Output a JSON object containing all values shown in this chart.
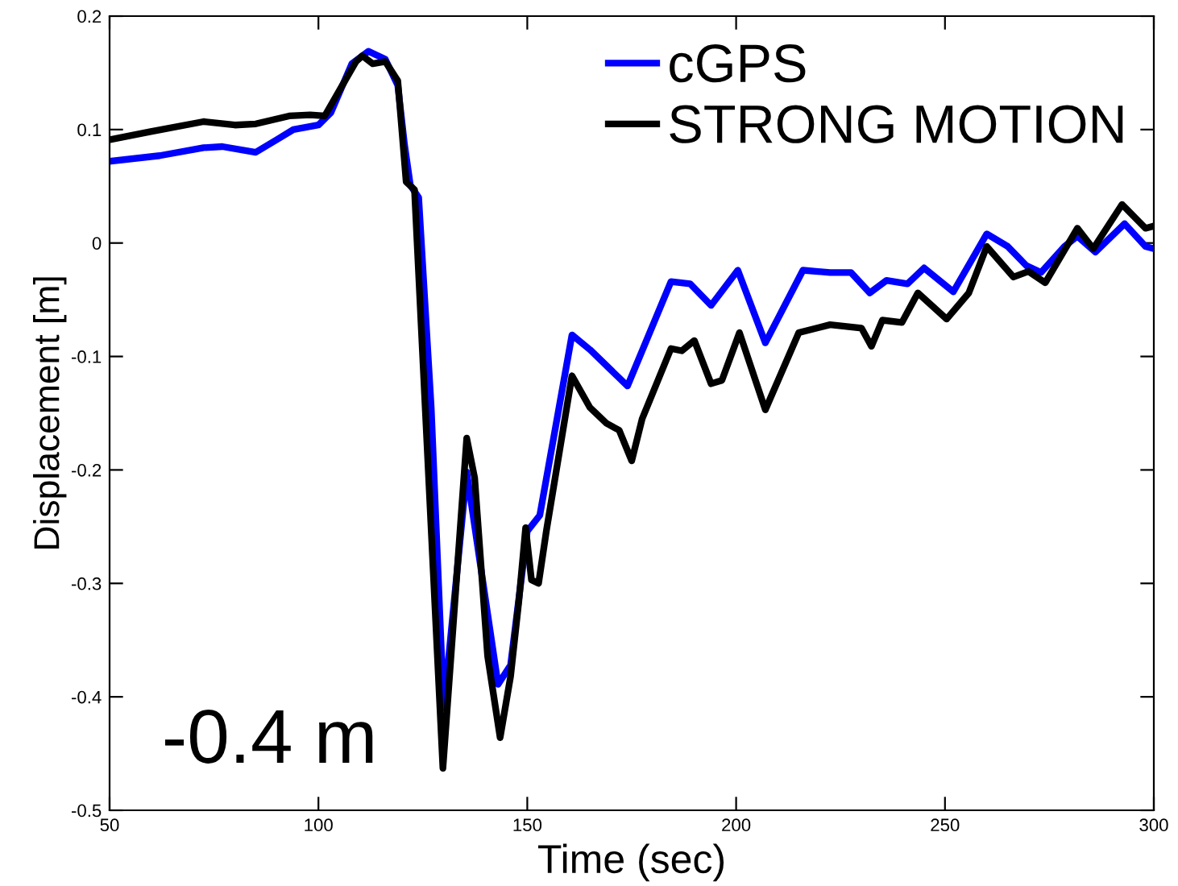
{
  "chart_data": {
    "type": "line",
    "xlabel": "Time (sec)",
    "ylabel": "Displacement [m]",
    "annotations": [
      "-0.4 m"
    ],
    "xlim": [
      50,
      300
    ],
    "ylim": [
      -0.5,
      0.2
    ],
    "xticks": [
      50,
      100,
      150,
      200,
      250,
      300
    ],
    "yticks": [
      -0.5,
      -0.4,
      -0.3,
      -0.2,
      -0.1,
      0,
      0.1,
      0.2
    ],
    "grid": false,
    "legend": "top right",
    "marker": "none",
    "line_style": "solid",
    "series": [
      {
        "name": "cGPS",
        "color": "#0000ff",
        "x": [
          50,
          62,
          72.5,
          77,
          85,
          90,
          94,
          100,
          103,
          108,
          112,
          116,
          119,
          120.6,
          122,
          124,
          127,
          130,
          135.5,
          143,
          146,
          150,
          153,
          160.7,
          165,
          174,
          184.4,
          189,
          194,
          200.4,
          207,
          216,
          222.5,
          227.5,
          232,
          236,
          241,
          245,
          252,
          260,
          265,
          269.5,
          273,
          278.6,
          281.7,
          286,
          293,
          298,
          300
        ],
        "values": [
          0.072,
          0.077,
          0.084,
          0.085,
          0.08,
          0.091,
          0.1,
          0.104,
          0.115,
          0.158,
          0.169,
          0.162,
          0.139,
          0.087,
          0.051,
          0.04,
          -0.145,
          -0.41,
          -0.202,
          -0.389,
          -0.372,
          -0.254,
          -0.24,
          -0.081,
          -0.094,
          -0.126,
          -0.034,
          -0.036,
          -0.055,
          -0.024,
          -0.088,
          -0.024,
          -0.026,
          -0.026,
          -0.044,
          -0.033,
          -0.036,
          -0.022,
          -0.043,
          0.008,
          -0.003,
          -0.02,
          -0.026,
          -0.003,
          0.006,
          -0.008,
          0.017,
          -0.003,
          -0.005
        ]
      },
      {
        "name": "STRONG MOTION",
        "color": "#000000",
        "x": [
          50,
          59.6,
          72.5,
          80,
          85,
          93,
          98,
          101.5,
          109,
          110.5,
          113,
          116,
          119,
          121,
          123,
          129.8,
          135.5,
          137.4,
          140.5,
          143.5,
          146,
          148,
          149.6,
          151,
          152.7,
          154.6,
          160.7,
          165,
          169,
          172,
          175,
          177.5,
          184.4,
          187,
          190,
          194,
          196.6,
          200.8,
          207,
          215,
          222.5,
          230,
          232.4,
          235,
          239.7,
          243.5,
          250.4,
          255.7,
          260,
          266.4,
          270,
          274,
          281.7,
          285.5,
          292.4,
          298,
          300
        ],
        "values": [
          0.091,
          0.098,
          0.107,
          0.104,
          0.105,
          0.112,
          0.113,
          0.112,
          0.16,
          0.165,
          0.158,
          0.16,
          0.143,
          0.054,
          0.047,
          -0.463,
          -0.172,
          -0.207,
          -0.364,
          -0.436,
          -0.382,
          -0.315,
          -0.251,
          -0.297,
          -0.3,
          -0.253,
          -0.117,
          -0.145,
          -0.159,
          -0.165,
          -0.192,
          -0.155,
          -0.093,
          -0.095,
          -0.086,
          -0.124,
          -0.121,
          -0.079,
          -0.147,
          -0.079,
          -0.072,
          -0.075,
          -0.091,
          -0.068,
          -0.07,
          -0.044,
          -0.067,
          -0.044,
          -0.003,
          -0.03,
          -0.025,
          -0.035,
          0.013,
          -0.005,
          0.034,
          0.013,
          0.015
        ]
      }
    ]
  }
}
